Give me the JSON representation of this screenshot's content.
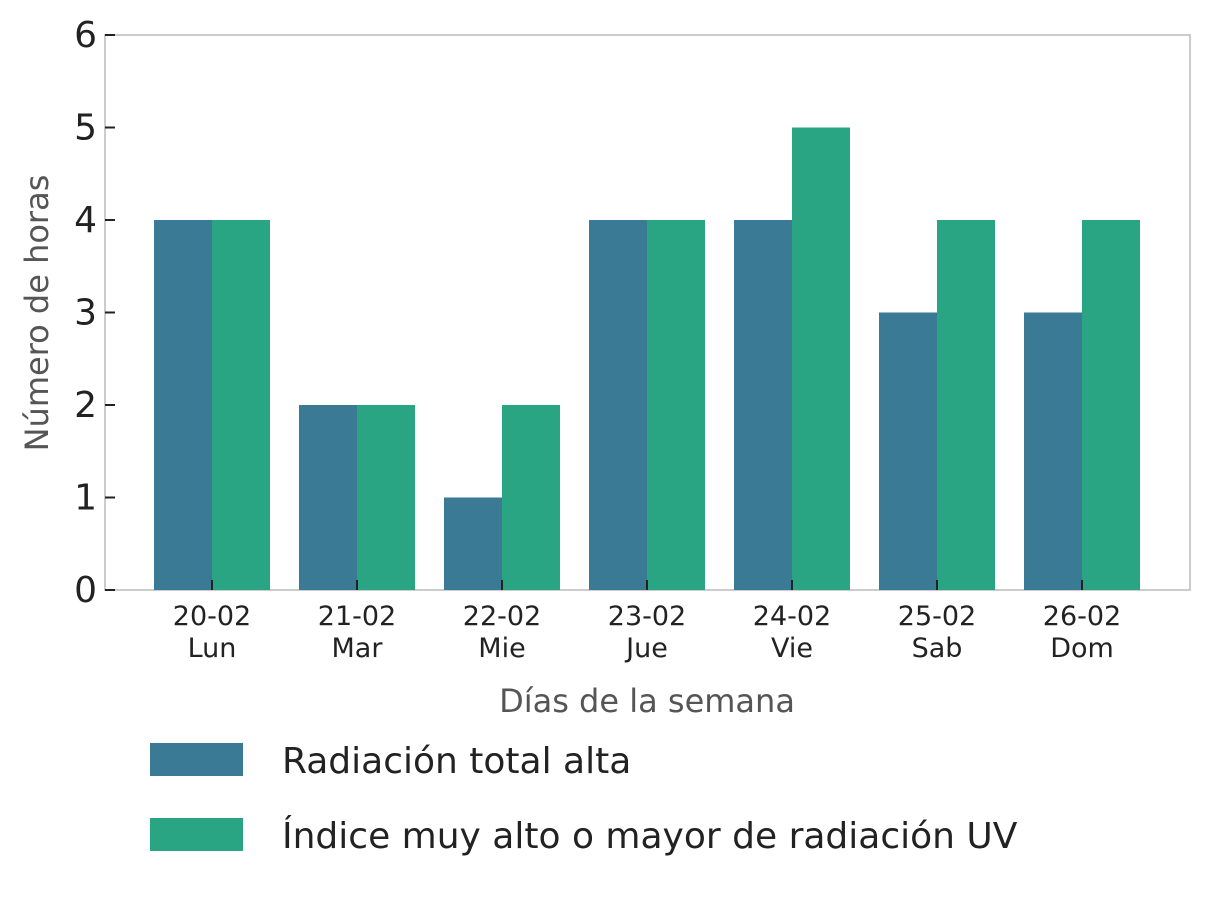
{
  "chart_data": {
    "type": "bar",
    "categories": [
      [
        "20-02",
        "Lun"
      ],
      [
        "21-02",
        "Mar"
      ],
      [
        "22-02",
        "Mie"
      ],
      [
        "23-02",
        "Jue"
      ],
      [
        "24-02",
        "Vie"
      ],
      [
        "25-02",
        "Sab"
      ],
      [
        "26-02",
        "Dom"
      ]
    ],
    "series": [
      {
        "name": "Radiación total alta",
        "color": "#3a7a94",
        "values": [
          4,
          2,
          1,
          4,
          4,
          3,
          3
        ]
      },
      {
        "name": "Índice muy alto o mayor de radiación UV",
        "color": "#29a584",
        "values": [
          4,
          2,
          2,
          4,
          5,
          4,
          4
        ]
      }
    ],
    "xlabel": "Días de la semana",
    "ylabel": "Número de horas",
    "ylim": [
      0,
      6
    ],
    "yticks": [
      0,
      1,
      2,
      3,
      4,
      5,
      6
    ],
    "grid": false,
    "legend_placement": "bottom"
  }
}
